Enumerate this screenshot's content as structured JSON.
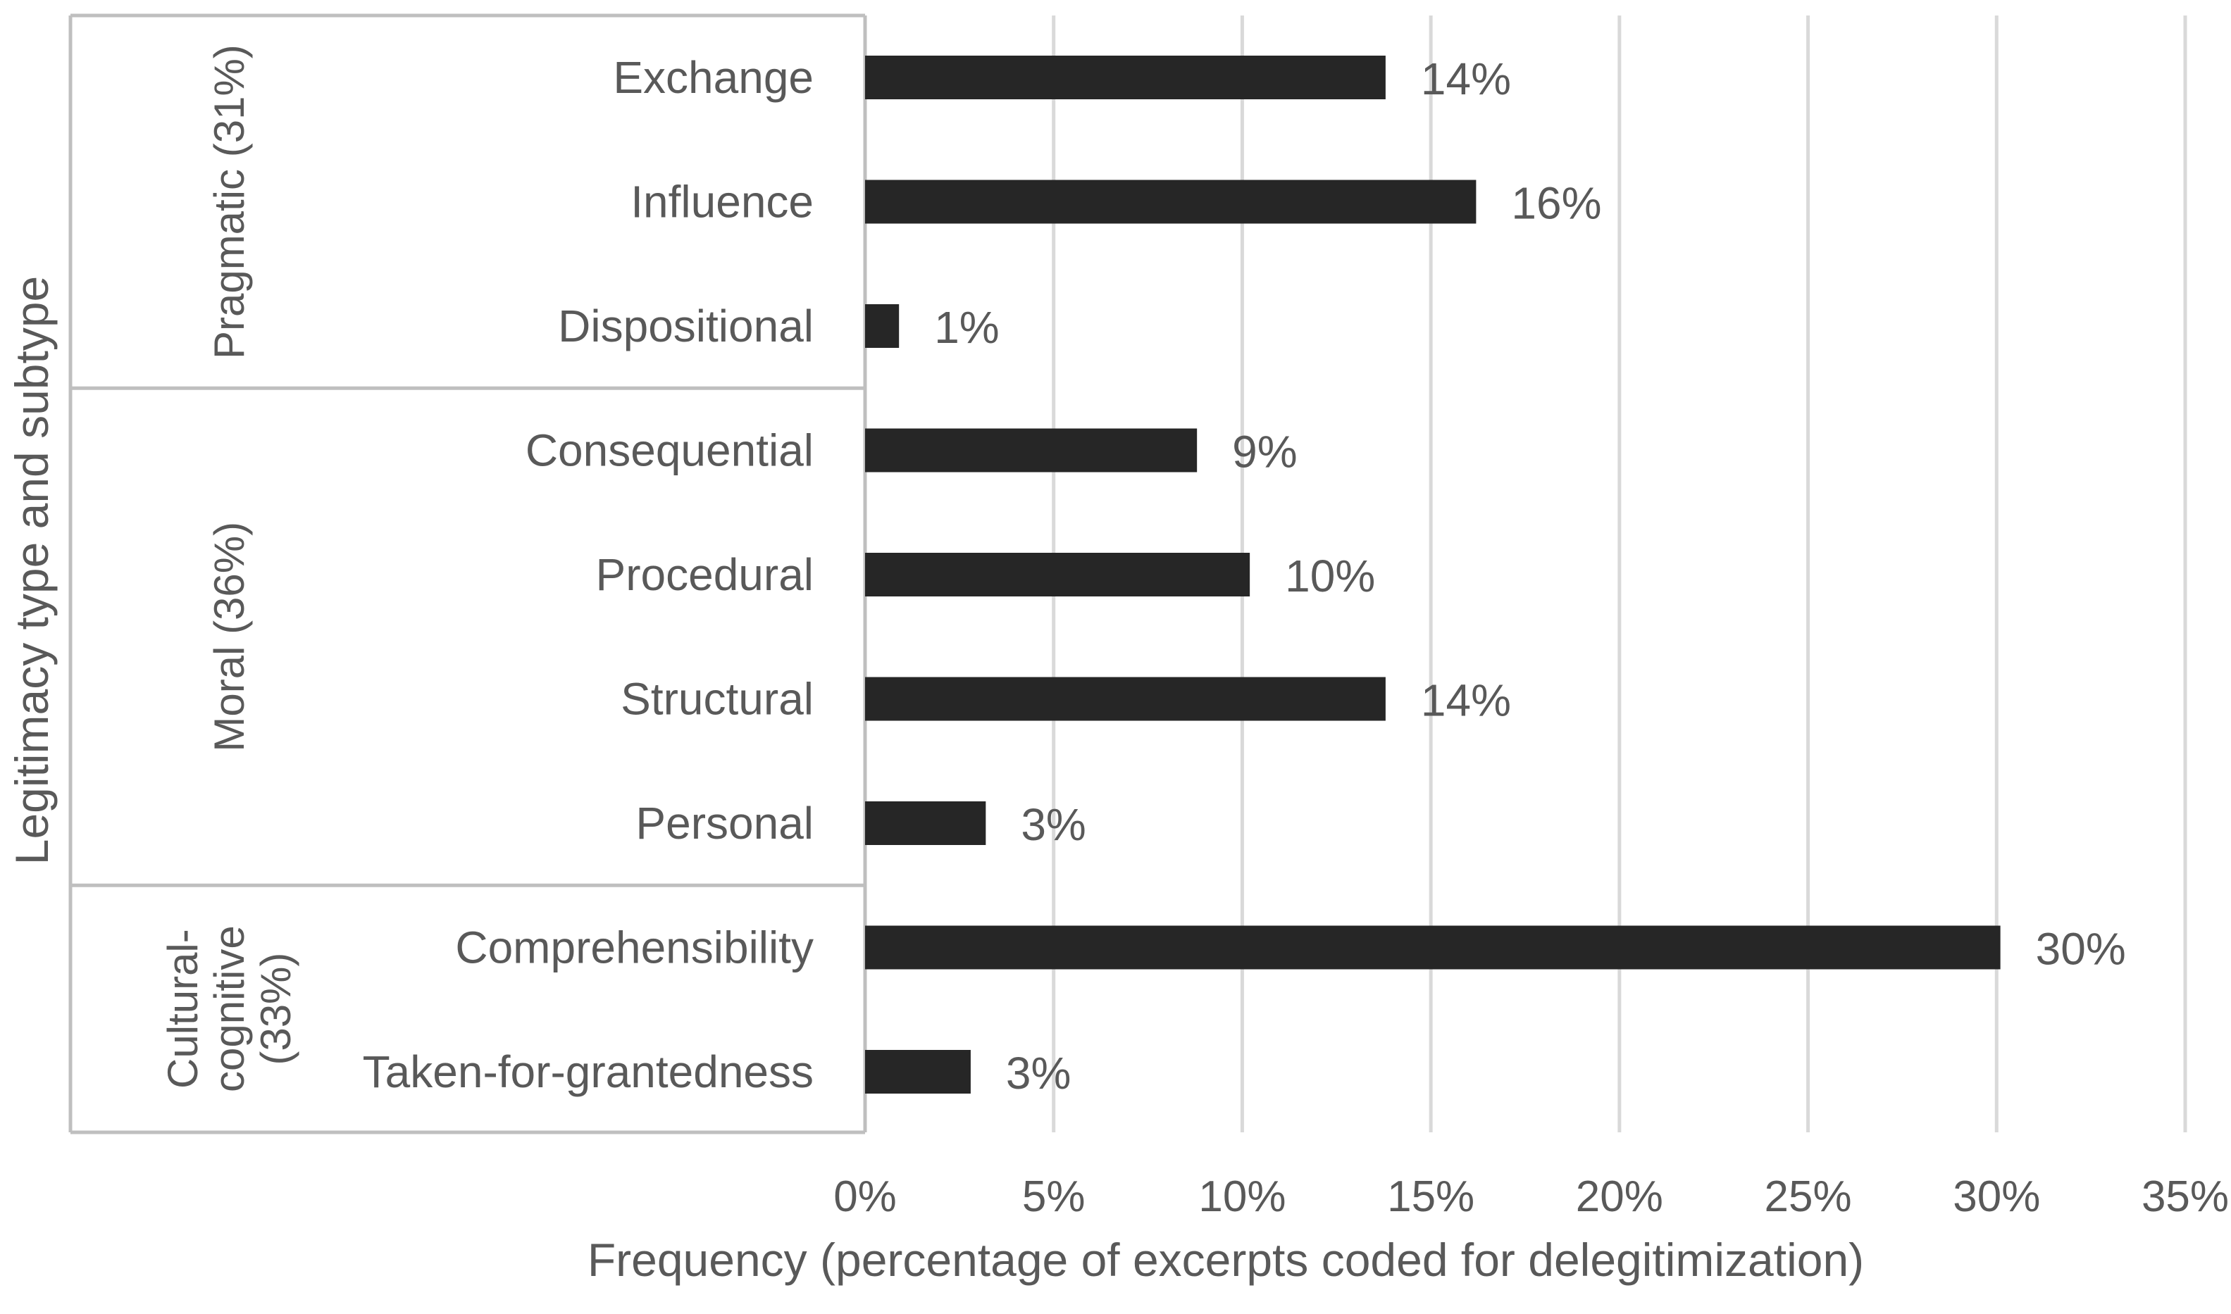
{
  "chart_data": {
    "type": "bar",
    "orientation": "horizontal",
    "xlabel": "Frequency (percentage of excerpts coded for delegitimization)",
    "ylabel": "Legitimacy type and subtype",
    "xlim": [
      0,
      35
    ],
    "xticks": [
      "0%",
      "5%",
      "10%",
      "15%",
      "20%",
      "25%",
      "30%",
      "35%"
    ],
    "grid": "vertical",
    "legend": "none",
    "bar_color": "#262626",
    "groups": [
      {
        "label": "Pragmatic (31%)",
        "lines": [
          "Pragmatic (31%)"
        ],
        "start": 0,
        "count": 3
      },
      {
        "label": "Moral (36%)",
        "lines": [
          "Moral (36%)"
        ],
        "start": 3,
        "count": 4
      },
      {
        "label": "Cultural-cognitive (33%)",
        "lines": [
          "Cultural-",
          "cognitive",
          "(33%)"
        ],
        "start": 7,
        "count": 2
      }
    ],
    "categories": [
      "Exchange",
      "Influence",
      "Dispositional",
      "Consequential",
      "Procedural",
      "Structural",
      "Personal",
      "Comprehensibility",
      "Taken-for-grantedness"
    ],
    "values": [
      13.8,
      16.2,
      0.9,
      8.8,
      10.2,
      13.8,
      3.2,
      30.1,
      2.8
    ],
    "data_labels": [
      "14%",
      "16%",
      "1%",
      "9%",
      "10%",
      "14%",
      "3%",
      "30%",
      "3%"
    ]
  }
}
